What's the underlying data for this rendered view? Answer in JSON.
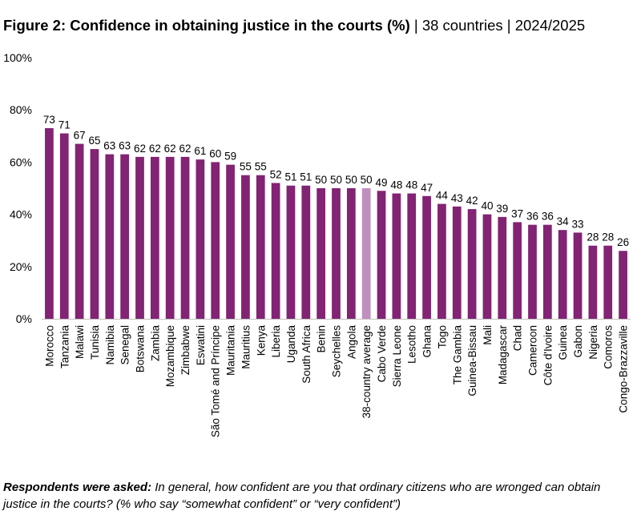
{
  "header": {
    "title": "Figure 2: Confidence in obtaining justice in the courts (%)",
    "subtitle": " | 38 countries | 2024/2025"
  },
  "footnote": {
    "lead": "Respondents were asked:",
    "text": " In general, how confident are you that ordinary citizens who are wronged can obtain justice in the courts? (% who say “somewhat confident” or “very confident”)"
  },
  "colors": {
    "bar": "#822374",
    "highlight": "#BF8FC0",
    "axis": "#BFBFBF"
  },
  "chart_data": {
    "type": "bar",
    "title": "Figure 2: Confidence in obtaining justice in the courts (%)",
    "xlabel": "",
    "ylabel": "",
    "ylim": [
      0,
      100
    ],
    "yticks": [
      0,
      20,
      40,
      60,
      80,
      100
    ],
    "ytick_labels": [
      "0%",
      "20%",
      "40%",
      "60%",
      "80%",
      "100%"
    ],
    "grid": false,
    "legend": "none",
    "highlight_category": "38-country average",
    "categories": [
      "Morocco",
      "Tanzania",
      "Malawi",
      "Tunisia",
      "Namibia",
      "Senegal",
      "Botswana",
      "Zambia",
      "Mozambique",
      "Zimbabwe",
      "Eswatini",
      "São Tomé and Príncipe",
      "Mauritania",
      "Mauritius",
      "Kenya",
      "Liberia",
      "Uganda",
      "South Africa",
      "Benin",
      "Seychelles",
      "Angola",
      "38-country average",
      "Cabo Verde",
      "Sierra Leone",
      "Lesotho",
      "Ghana",
      "Togo",
      "The Gambia",
      "Guinea-Bissau",
      "Mali",
      "Madagascar",
      "Chad",
      "Cameroon",
      "Côte d'Ivoire",
      "Guinea",
      "Gabon",
      "Nigeria",
      "Comoros",
      "Congo-Brazzaville"
    ],
    "values": [
      73,
      71,
      67,
      65,
      63,
      63,
      62,
      62,
      62,
      62,
      61,
      60,
      59,
      55,
      55,
      52,
      51,
      51,
      50,
      50,
      50,
      50,
      49,
      48,
      48,
      47,
      44,
      43,
      42,
      40,
      39,
      37,
      36,
      36,
      34,
      33,
      28,
      28,
      26
    ]
  }
}
